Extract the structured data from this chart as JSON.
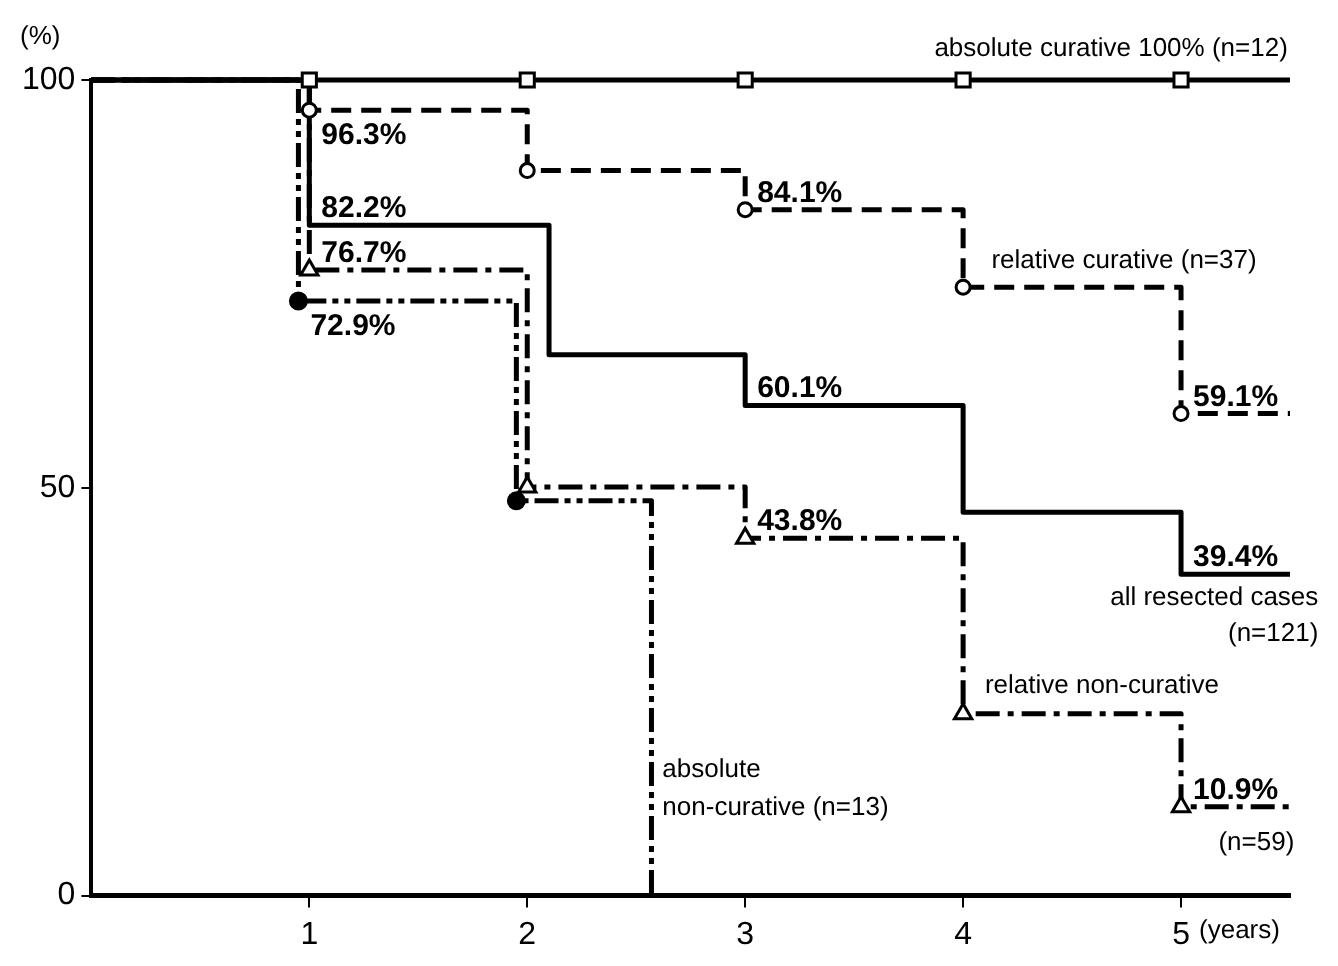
{
  "chart_data": {
    "type": "step",
    "xlabel": "(years)",
    "ylabel": "(%)",
    "xlim": [
      0,
      5.5
    ],
    "ylim": [
      0,
      100
    ],
    "xticks": [
      1,
      2,
      3,
      4,
      5
    ],
    "yticks": [
      0,
      50,
      100
    ],
    "grid": false,
    "legend": false,
    "series": [
      {
        "name": "absolute curative 100% (n=12)",
        "color": "#000000",
        "marker": "square",
        "line_style": "solid",
        "x": [
          0,
          1,
          2,
          3,
          4,
          5,
          5.5
        ],
        "values": [
          100,
          100,
          100,
          100,
          100,
          100,
          100
        ]
      },
      {
        "name": "relative curative (n=37)",
        "color": "#000000",
        "marker": "circle",
        "line_style": "dashed",
        "x": [
          0,
          1,
          2,
          3,
          4,
          5,
          5.5
        ],
        "values": [
          100,
          96.3,
          88.9,
          84.1,
          74.6,
          59.1,
          59.1
        ],
        "value_labels": [
          null,
          "96.3%",
          null,
          "84.1%",
          null,
          "59.1%",
          null
        ]
      },
      {
        "name": "all resected cases\n(n=121)",
        "color": "#000000",
        "marker": "none",
        "line_style": "solid",
        "x": [
          0,
          1,
          2.1,
          3,
          4,
          5,
          5.5
        ],
        "values": [
          100,
          82.2,
          66.3,
          60.1,
          47,
          39.4,
          39.4
        ],
        "value_labels": [
          null,
          "82.2%",
          null,
          "60.1%",
          null,
          "39.4%",
          null
        ]
      },
      {
        "name": "relative non-curative\n(n=59)",
        "color": "#000000",
        "marker": "triangle",
        "line_style": "dashdot",
        "x": [
          0,
          1,
          2,
          3,
          4,
          5,
          5.5
        ],
        "values": [
          100,
          76.7,
          50.1,
          43.8,
          22.3,
          10.9,
          10.9
        ],
        "value_labels": [
          null,
          "76.7%",
          null,
          "43.8%",
          null,
          "10.9%",
          null
        ]
      },
      {
        "name": "absolute\nnon-curative (n=13)",
        "color": "#000000",
        "marker": "circle-filled",
        "line_style": "dashdotdot",
        "x": [
          0,
          0.95,
          1.95,
          2.57
        ],
        "values": [
          100,
          72.9,
          48.4,
          0
        ],
        "value_labels": [
          null,
          "72.9%",
          null,
          null
        ]
      }
    ]
  }
}
